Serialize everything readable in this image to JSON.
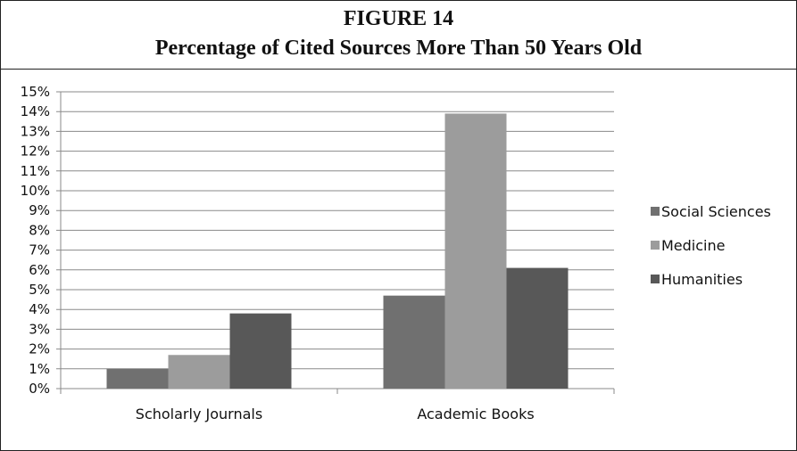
{
  "figure": {
    "number": "FIGURE 14",
    "title": "Percentage of Cited Sources More Than 50 Years Old"
  },
  "chart_data": {
    "type": "bar",
    "title": "Percentage of Cited Sources More Than 50 Years Old",
    "categories": [
      "Scholarly Journals",
      "Academic Books"
    ],
    "series": [
      {
        "name": "Social Sciences",
        "color": "#707070",
        "values": [
          1.0,
          4.7
        ]
      },
      {
        "name": "Medicine",
        "color": "#9c9c9c",
        "values": [
          1.7,
          13.9
        ]
      },
      {
        "name": "Humanities",
        "color": "#585858",
        "values": [
          3.8,
          6.1
        ]
      }
    ],
    "ylim": [
      0,
      15
    ],
    "ytick_step": 1,
    "ytick_labels": [
      "0%",
      "1%",
      "2%",
      "3%",
      "4%",
      "5%",
      "6%",
      "7%",
      "8%",
      "9%",
      "10%",
      "11%",
      "12%",
      "13%",
      "14%",
      "15%"
    ],
    "xlabel": "",
    "ylabel": "",
    "grid": true,
    "legend_position": "right"
  }
}
